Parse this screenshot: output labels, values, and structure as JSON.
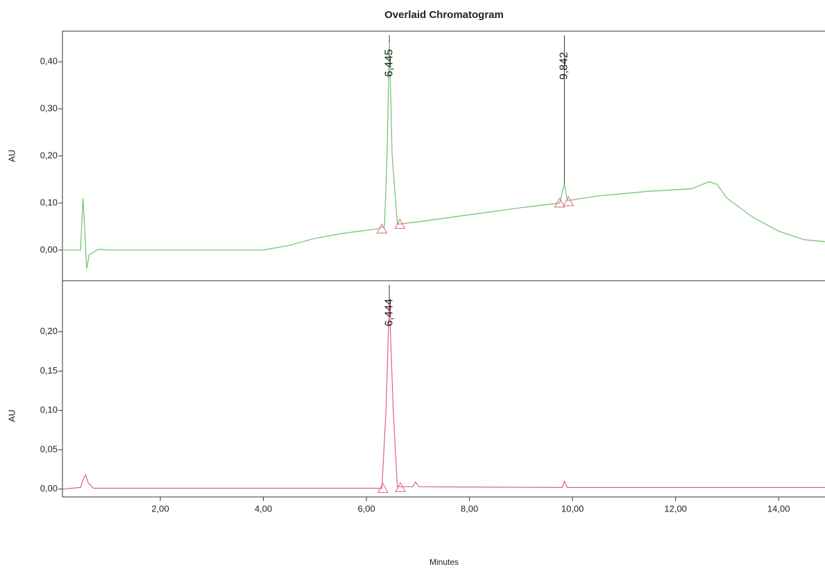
{
  "chart_data": [
    {
      "type": "line",
      "title": "Overlaid Chromatogram",
      "ylabel": "AU",
      "xlim": [
        0.1,
        14.9
      ],
      "ylim": [
        -0.065,
        0.465
      ],
      "yticks": [
        {
          "value": 0,
          "label": "0,00"
        },
        {
          "value": 0.1,
          "label": "0,10"
        },
        {
          "value": 0.2,
          "label": "0,20"
        },
        {
          "value": 0.3,
          "label": "0,30"
        },
        {
          "value": 0.4,
          "label": "0,40"
        }
      ],
      "color": "#6dbf6d",
      "x": [
        0.1,
        0.45,
        0.5,
        0.53,
        0.57,
        0.62,
        0.8,
        1.0,
        4.0,
        4.5,
        5.0,
        5.5,
        6.2,
        6.35,
        6.4,
        6.445,
        6.5,
        6.6,
        7.0,
        8.0,
        9.0,
        9.75,
        9.842,
        9.9,
        10.5,
        11.5,
        12.3,
        12.65,
        12.8,
        13.0,
        13.5,
        14.0,
        14.5,
        14.9
      ],
      "values": [
        0.0,
        0.0,
        0.11,
        0.05,
        -0.04,
        -0.01,
        0.002,
        0.0,
        0.0,
        0.01,
        0.025,
        0.035,
        0.045,
        0.05,
        0.2,
        0.44,
        0.2,
        0.055,
        0.06,
        0.075,
        0.09,
        0.1,
        0.14,
        0.105,
        0.115,
        0.125,
        0.13,
        0.145,
        0.14,
        0.11,
        0.07,
        0.04,
        0.022,
        0.018
      ],
      "peaks": [
        {
          "value": 6.445,
          "label": "6,445"
        },
        {
          "value": 9.842,
          "label": "9,842"
        }
      ],
      "baseline_markers": {
        "x": [
          6.3,
          6.65,
          9.75,
          9.92
        ],
        "values": [
          0.045,
          0.055,
          0.1,
          0.103
        ]
      }
    },
    {
      "type": "line",
      "ylabel": "AU",
      "xlabel": "Minutes",
      "xlim": [
        0.1,
        14.9
      ],
      "ylim": [
        -0.01,
        0.265
      ],
      "xticks": [
        {
          "value": 2,
          "label": "2,00"
        },
        {
          "value": 4,
          "label": "4,00"
        },
        {
          "value": 6,
          "label": "6,00"
        },
        {
          "value": 8,
          "label": "8,00"
        },
        {
          "value": 10,
          "label": "10,00"
        },
        {
          "value": 12,
          "label": "12,00"
        },
        {
          "value": 14,
          "label": "14,00"
        }
      ],
      "yticks": [
        {
          "value": 0,
          "label": "0,00"
        },
        {
          "value": 0.05,
          "label": "0,05"
        },
        {
          "value": 0.1,
          "label": "0,10"
        },
        {
          "value": 0.15,
          "label": "0,15"
        },
        {
          "value": 0.2,
          "label": "0,20"
        }
      ],
      "color": "#e0607a",
      "x": [
        0.1,
        0.45,
        0.5,
        0.55,
        0.6,
        0.7,
        6.0,
        6.3,
        6.38,
        6.444,
        6.52,
        6.6,
        6.9,
        6.95,
        7.02,
        9.8,
        9.842,
        9.9,
        14.9
      ],
      "values": [
        0.0,
        0.002,
        0.012,
        0.018,
        0.008,
        0.001,
        0.001,
        0.001,
        0.1,
        0.24,
        0.1,
        0.003,
        0.003,
        0.009,
        0.003,
        0.002,
        0.01,
        0.002,
        0.002
      ],
      "peaks": [
        {
          "value": 6.444,
          "label": "6,444"
        }
      ],
      "baseline_markers": {
        "x": [
          6.32,
          6.66
        ],
        "values": [
          0.001,
          0.002
        ]
      }
    }
  ]
}
